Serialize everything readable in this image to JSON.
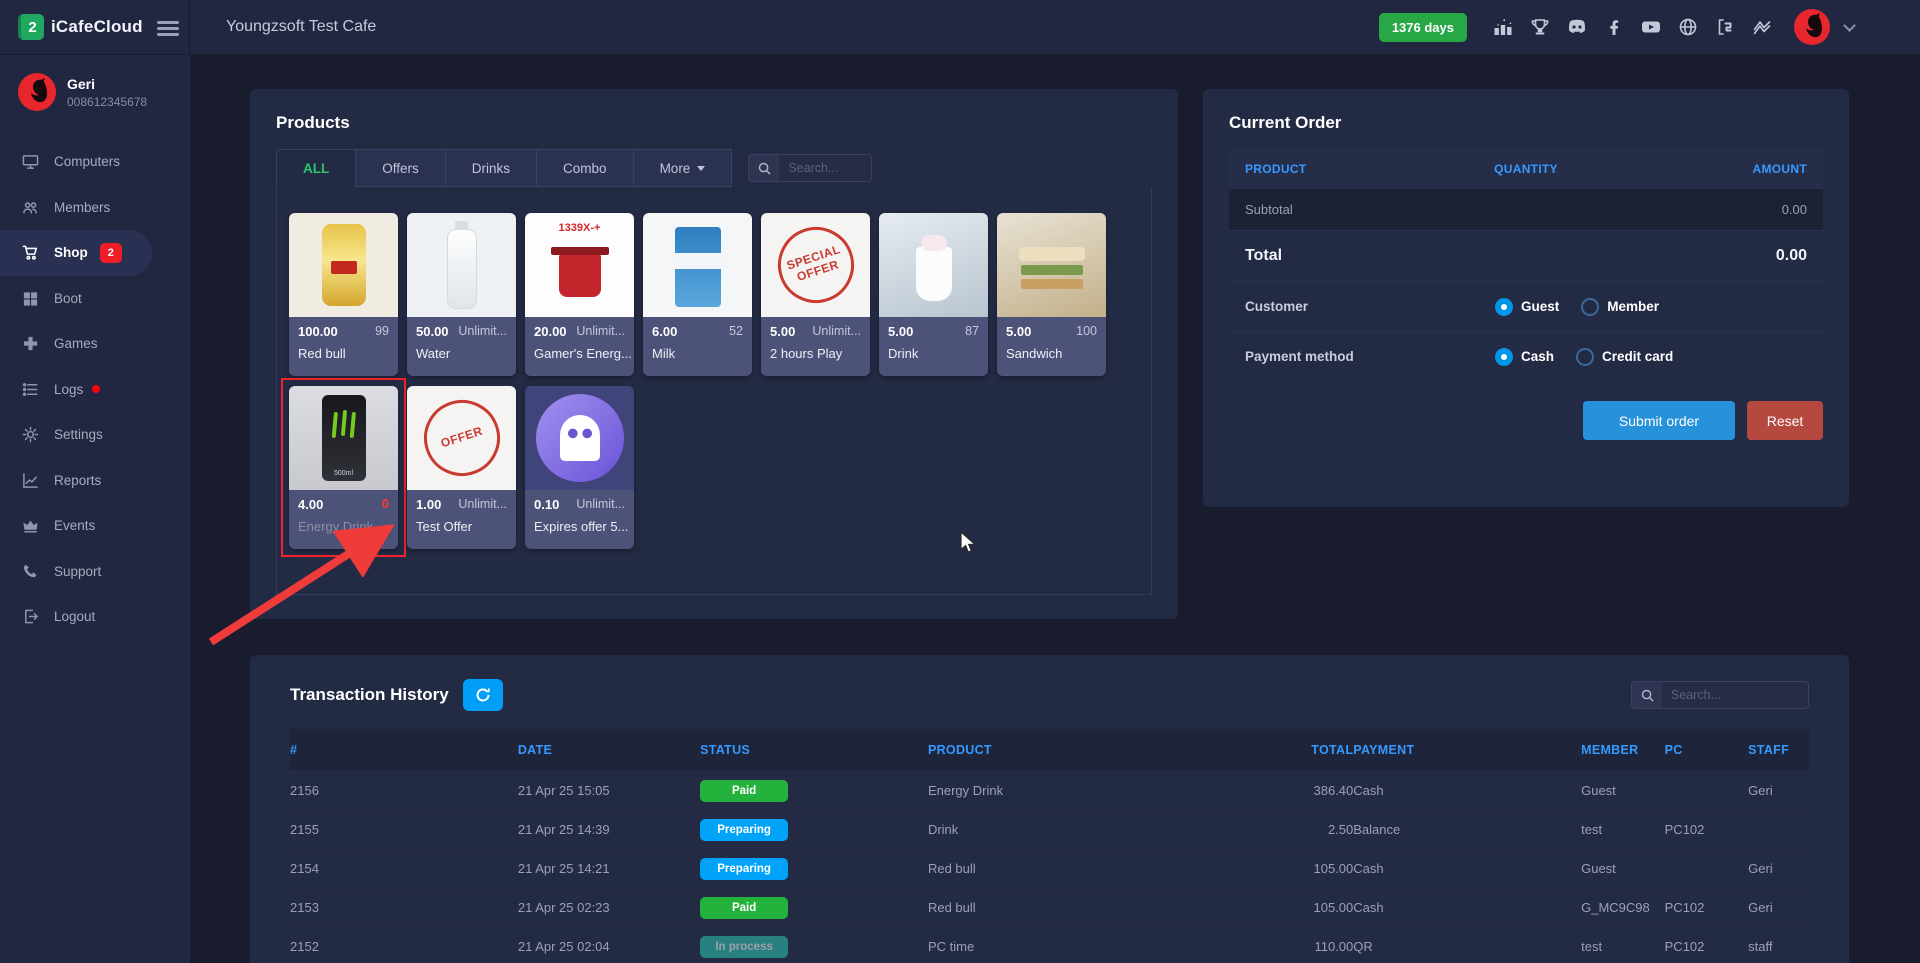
{
  "topbar": {
    "brand": "iCafeCloud",
    "cafe_name": "Youngzsoft Test Cafe",
    "days_badge": "1376 days",
    "icons": [
      "ranking",
      "trophy",
      "discord",
      "facebook",
      "youtube",
      "globe",
      "icafecloud-mini",
      "youngzsoft"
    ]
  },
  "sidebar": {
    "user": {
      "name": "Geri",
      "id": "008612345678"
    },
    "items": [
      {
        "label": "Computers",
        "icon": "computers"
      },
      {
        "label": "Members",
        "icon": "members"
      },
      {
        "label": "Shop",
        "icon": "shop-cart",
        "badge": "2",
        "active": true
      },
      {
        "label": "Boot",
        "icon": "boot-windows"
      },
      {
        "label": "Games",
        "icon": "games"
      },
      {
        "label": "Logs",
        "icon": "logs",
        "dot": true
      },
      {
        "label": "Settings",
        "icon": "settings-gear"
      },
      {
        "label": "Reports",
        "icon": "reports"
      },
      {
        "label": "Events",
        "icon": "events-crown"
      },
      {
        "label": "Support",
        "icon": "support-phone"
      },
      {
        "label": "Logout",
        "icon": "logout"
      }
    ]
  },
  "products": {
    "title": "Products",
    "tabs": [
      {
        "label": "ALL",
        "active": true
      },
      {
        "label": "Offers"
      },
      {
        "label": "Drinks"
      },
      {
        "label": "Combo"
      },
      {
        "label": "More",
        "dropdown": true
      }
    ],
    "search_placeholder": "Search...",
    "items": [
      {
        "name": "Red bull",
        "price": "100.00",
        "stock": "99",
        "image": "redbull"
      },
      {
        "name": "Water",
        "price": "50.00",
        "stock": "Unlimit...",
        "image": "water"
      },
      {
        "name": "Gamer's Energ...",
        "price": "20.00",
        "stock": "Unlimit...",
        "image": "gamers",
        "image_text": "1339X-+"
      },
      {
        "name": "Milk",
        "price": "6.00",
        "stock": "52",
        "image": "milk"
      },
      {
        "name": "2 hours Play",
        "price": "5.00",
        "stock": "Unlimit...",
        "image": "stamp",
        "image_text": "SPECIAL OFFER"
      },
      {
        "name": "Drink",
        "price": "5.00",
        "stock": "87",
        "image": "shake"
      },
      {
        "name": "Sandwich",
        "price": "5.00",
        "stock": "100",
        "image": "sandwich"
      },
      {
        "name": "Energy Drink",
        "price": "4.00",
        "stock": "0",
        "image": "energy",
        "image_text": "500ml",
        "highlighted": true,
        "out_of_stock": true
      },
      {
        "name": "Test Offer",
        "price": "1.00",
        "stock": "Unlimit...",
        "image": "stamp",
        "image_text": "OFFER"
      },
      {
        "name": "Expires offer 5...",
        "price": "0.10",
        "stock": "Unlimit...",
        "image": "ghost"
      }
    ]
  },
  "order": {
    "title": "Current Order",
    "columns": [
      "PRODUCT",
      "QUANTITY",
      "AMOUNT"
    ],
    "subtotal_label": "Subtotal",
    "subtotal_value": "0.00",
    "total_label": "Total",
    "total_value": "0.00",
    "customer_label": "Customer",
    "customer_options": [
      {
        "label": "Guest",
        "selected": true
      },
      {
        "label": "Member",
        "selected": false
      }
    ],
    "payment_label": "Payment method",
    "payment_options": [
      {
        "label": "Cash",
        "selected": true
      },
      {
        "label": "Credit card",
        "selected": false
      }
    ],
    "submit_label": "Submit order",
    "reset_label": "Reset"
  },
  "transactions": {
    "title": "Transaction History",
    "search_placeholder": "Search...",
    "columns": [
      "#",
      "DATE",
      "STATUS",
      "PRODUCT",
      "TOTAL",
      "PAYMENT",
      "MEMBER",
      "PC",
      "STAFF"
    ],
    "rows": [
      {
        "id": "2156",
        "date": "21 Apr 25 15:05",
        "status": "Paid",
        "status_class": "paid",
        "product": "Energy Drink",
        "total": "386.40",
        "payment": "Cash",
        "member": "Guest",
        "pc": "",
        "staff": "Geri"
      },
      {
        "id": "2155",
        "date": "21 Apr 25 14:39",
        "status": "Preparing",
        "status_class": "preparing",
        "product": "Drink",
        "total": "2.50",
        "payment": "Balance",
        "member": "test",
        "pc": "PC102",
        "staff": ""
      },
      {
        "id": "2154",
        "date": "21 Apr 25 14:21",
        "status": "Preparing",
        "status_class": "preparing",
        "product": "Red bull",
        "total": "105.00",
        "payment": "Cash",
        "member": "Guest",
        "pc": "",
        "staff": "Geri"
      },
      {
        "id": "2153",
        "date": "21 Apr 25 02:23",
        "status": "Paid",
        "status_class": "paid",
        "product": "Red bull",
        "total": "105.00",
        "payment": "Cash",
        "member": "G_MC9C98",
        "pc": "PC102",
        "staff": "Geri"
      },
      {
        "id": "2152",
        "date": "21 Apr 25 02:04",
        "status": "In process",
        "status_class": "in-process",
        "product": "PC time",
        "total": "110.00",
        "payment": "QR",
        "member": "test",
        "pc": "PC102",
        "staff": "staff"
      }
    ]
  },
  "colors": {
    "accent_blue": "#3699ff",
    "green_badge": "#28a745",
    "alert_red": "#f1222b",
    "status_paid": "#23b33c",
    "status_preparing": "#00a3f7",
    "status_in_process": "#2fc7b2",
    "submit_blue": "#2791da",
    "reset_red": "#b6493f",
    "active_tab_green": "#28c76f"
  }
}
